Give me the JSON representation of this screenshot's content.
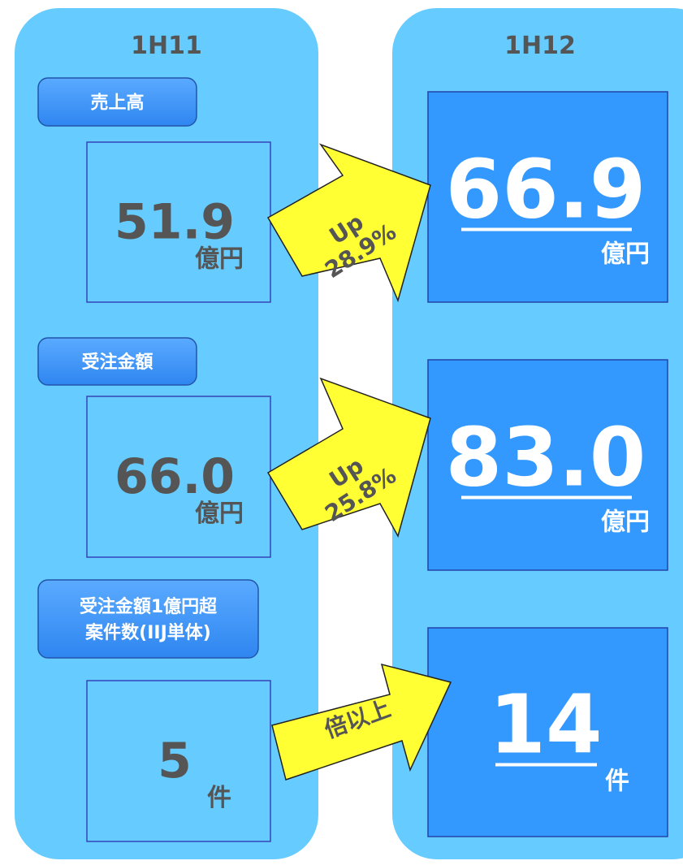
{
  "columns": [
    "1H11",
    "1H12"
  ],
  "sections": [
    {
      "label": [
        "売上高"
      ],
      "before": "51.9",
      "before_unit": "億円",
      "change": [
        "Up",
        "28.9%"
      ],
      "after": "66.9",
      "after_unit": "億円"
    },
    {
      "label": [
        "受注金額"
      ],
      "before": "66.0",
      "before_unit": "億円",
      "change": [
        "Up",
        "25.8%"
      ],
      "after": "83.0",
      "after_unit": "億円"
    },
    {
      "label": [
        "受注金額1億円超",
        "案件数(IIJ単体)"
      ],
      "before": "5",
      "before_unit": "件",
      "change": [
        "倍以上"
      ],
      "after": "14",
      "after_unit": "件"
    }
  ]
}
